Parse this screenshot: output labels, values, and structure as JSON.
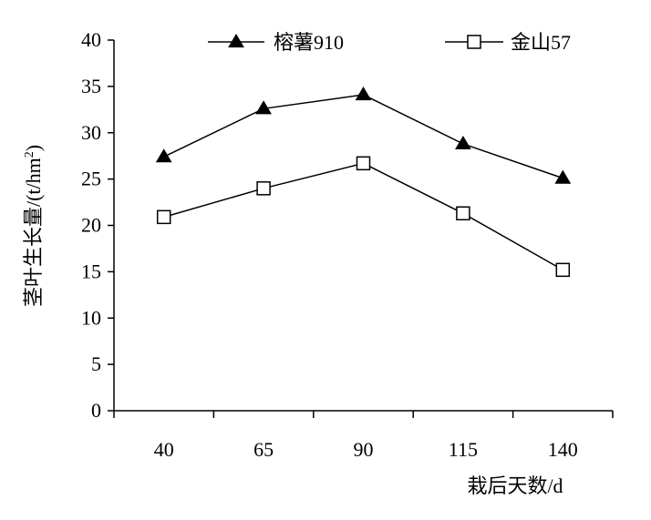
{
  "chart_data": {
    "type": "line",
    "categories": [
      "40",
      "65",
      "90",
      "115",
      "140"
    ],
    "series": [
      {
        "name": "榕薯910",
        "values": [
          27.4,
          32.6,
          34.1,
          28.8,
          25.1
        ],
        "marker": "filled-triangle",
        "color": "#000000"
      },
      {
        "name": "金山57",
        "values": [
          20.9,
          24.0,
          26.7,
          21.3,
          15.2
        ],
        "marker": "open-square",
        "color": "#000000"
      }
    ],
    "xlabel": "栽后天数/d",
    "ylabel_main": "茎叶生长量/(t/hm",
    "ylabel_sup": "2",
    "ylabel_end": ")",
    "ylim": [
      0,
      40
    ],
    "yticks": [
      "0",
      "5",
      "10",
      "15",
      "20",
      "25",
      "30",
      "35",
      "40"
    ],
    "grid": false,
    "legend_position": "top"
  }
}
